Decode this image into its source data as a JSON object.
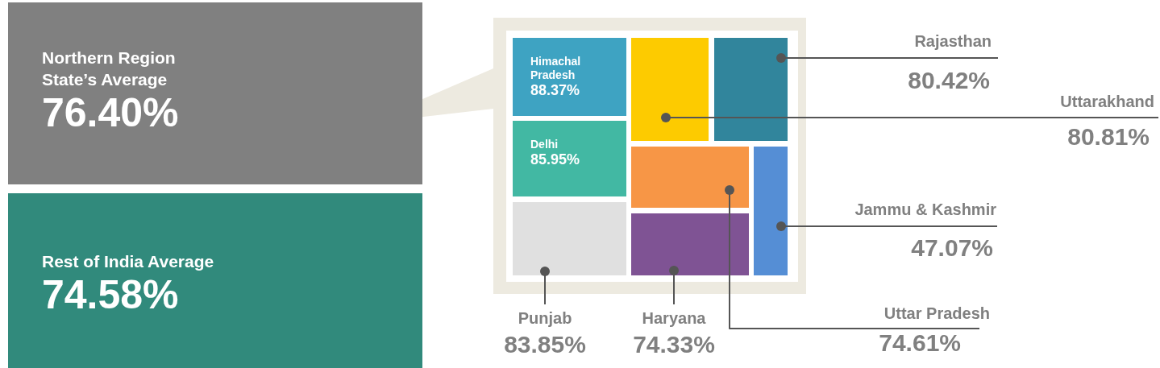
{
  "chart_data": {
    "type": "other",
    "categories": [
      "Himachal Pradesh",
      "Delhi",
      "Punjab",
      "Uttarakhand",
      "Rajasthan",
      "Uttar Pradesh",
      "Haryana",
      "Jammu & Kashmir"
    ],
    "values": [
      88.37,
      85.95,
      83.85,
      80.81,
      80.42,
      74.61,
      74.33,
      47.07
    ],
    "value_labels": [
      "88.37%",
      "85.95%",
      "83.85%",
      "80.81%",
      "80.42%",
      "74.61%",
      "74.33%",
      "47.07%"
    ],
    "colors": [
      "#3ea3c2",
      "#42b8a3",
      "#e0e0e0",
      "#fdcb00",
      "#31859c",
      "#f79646",
      "#7f5394",
      "#558ed5"
    ],
    "annotations": [
      "Northern Region State’s Average",
      "76.40%",
      "Rest of India Average",
      "74.58%"
    ]
  }
}
